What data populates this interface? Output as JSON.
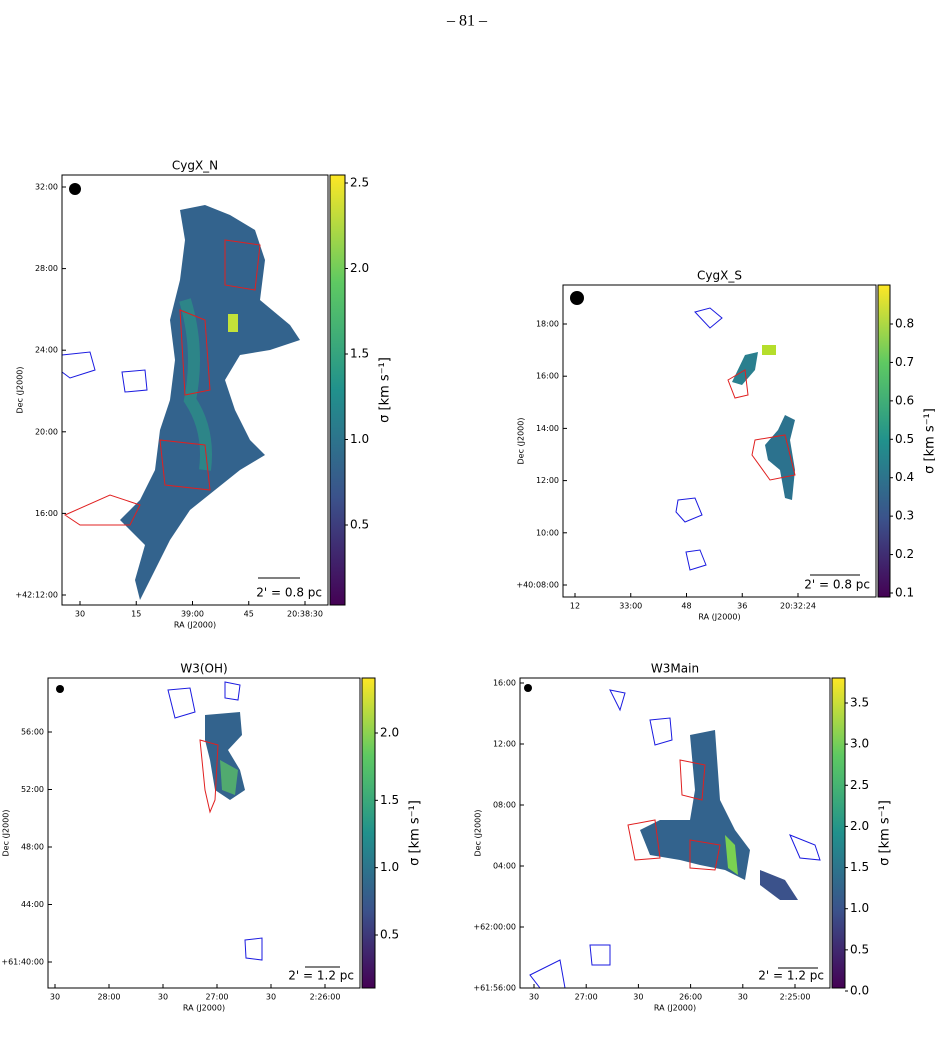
{
  "page_number": "– 81 –",
  "panels": [
    {
      "title": "CygX_N",
      "xlabel": "RA (J2000)",
      "ylabel": "Dec (J2000)",
      "colorbar_label": "σ [km s⁻¹]",
      "scale_bar": "2' = 0.8 pc",
      "xticks": [
        "30",
        "15",
        "39:00",
        "45",
        "20:38:30"
      ],
      "yticks": [
        "32:00",
        "28:00",
        "24:00",
        "20:00",
        "16:00",
        "+42:12:00"
      ],
      "colorbar_ticks": [
        "2.5",
        "2.0",
        "1.5",
        "1.0",
        "0.5"
      ]
    },
    {
      "title": "CygX_S",
      "xlabel": "RA (J2000)",
      "ylabel": "Dec (J2000)",
      "colorbar_label": "σ [km s⁻¹]",
      "scale_bar": "2' = 0.8 pc",
      "xticks": [
        "12",
        "33:00",
        "48",
        "36",
        "20:32:24"
      ],
      "yticks": [
        "18:00",
        "16:00",
        "14:00",
        "12:00",
        "10:00",
        "+40:08:00"
      ],
      "colorbar_ticks": [
        "0.8",
        "0.7",
        "0.6",
        "0.5",
        "0.4",
        "0.3",
        "0.2",
        "0.1"
      ]
    },
    {
      "title": "W3(OH)",
      "xlabel": "RA (J2000)",
      "ylabel": "Dec (J2000)",
      "colorbar_label": "σ [km s⁻¹]",
      "scale_bar": "2' = 1.2 pc",
      "xticks": [
        "30",
        "28:00",
        "30",
        "27:00",
        "30",
        "2:26:00"
      ],
      "yticks": [
        "56:00",
        "52:00",
        "48:00",
        "44:00",
        "+61:40:00"
      ],
      "colorbar_ticks": [
        "2.0",
        "1.5",
        "1.0",
        "0.5"
      ]
    },
    {
      "title": "W3Main",
      "xlabel": "RA (J2000)",
      "ylabel": "Dec (J2000)",
      "colorbar_label": "σ [km s⁻¹]",
      "scale_bar": "2' = 1.2 pc",
      "xticks": [
        "30",
        "27:00",
        "30",
        "26:00",
        "30",
        "2:25:00"
      ],
      "yticks": [
        "16:00",
        "12:00",
        "08:00",
        "04:00",
        "+62:00:00",
        "+61:56:00"
      ],
      "colorbar_ticks": [
        "3.5",
        "3.0",
        "2.5",
        "2.0",
        "1.5",
        "1.0",
        "0.5",
        "0.0"
      ]
    }
  ]
}
